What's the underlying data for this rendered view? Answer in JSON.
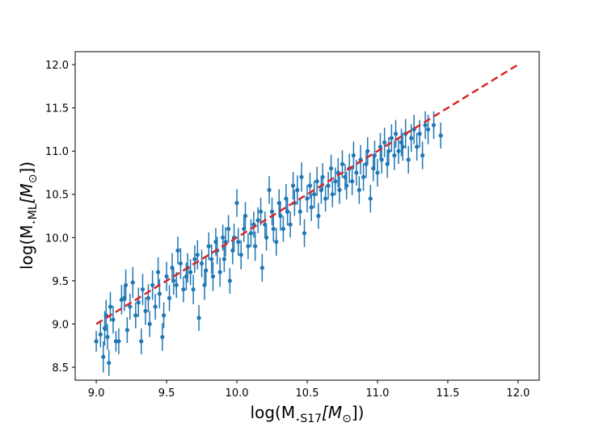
{
  "chart_data": {
    "type": "scatter",
    "title": "",
    "xlabel": {
      "prefix": "log(M",
      "star": "⋆",
      "sub": "S17",
      "unit": "[M",
      "odot": "⊙",
      "suffix": "])"
    },
    "ylabel": {
      "prefix": "log(M",
      "star": "⋆",
      "sub": "ML",
      "unit": "[M",
      "odot": "⊙",
      "suffix": "])"
    },
    "xlim": [
      8.85,
      12.15
    ],
    "ylim": [
      8.35,
      12.15
    ],
    "xticks": [
      9.0,
      9.5,
      10.0,
      10.5,
      11.0,
      11.5,
      12.0
    ],
    "xtick_labels": [
      "9.0",
      "9.5",
      "10.0",
      "10.5",
      "11.0",
      "11.5",
      "12.0"
    ],
    "yticks": [
      8.5,
      9.0,
      9.5,
      10.0,
      10.5,
      11.0,
      11.5,
      12.0
    ],
    "ytick_labels": [
      "8.5",
      "9.0",
      "9.5",
      "10.0",
      "10.5",
      "11.0",
      "11.5",
      "12.0"
    ],
    "grid": false,
    "legend": "none",
    "series": [
      {
        "kind": "errorbar-points",
        "color": "#1f77b4",
        "points": [
          [
            9.0,
            8.8,
            0.12
          ],
          [
            9.03,
            8.88,
            0.15
          ],
          [
            9.05,
            8.62,
            0.18
          ],
          [
            9.06,
            8.95,
            0.2
          ],
          [
            9.07,
            9.1,
            0.18
          ],
          [
            9.08,
            8.85,
            0.15
          ],
          [
            9.09,
            8.55,
            0.15
          ],
          [
            9.1,
            9.2,
            0.17
          ],
          [
            9.12,
            9.05,
            0.16
          ],
          [
            9.14,
            8.8,
            0.12
          ],
          [
            9.16,
            8.8,
            0.15
          ],
          [
            9.18,
            9.28,
            0.17
          ],
          [
            9.2,
            9.3,
            0.15
          ],
          [
            9.21,
            9.45,
            0.18
          ],
          [
            9.22,
            8.93,
            0.15
          ],
          [
            9.24,
            9.2,
            0.15
          ],
          [
            9.26,
            9.48,
            0.18
          ],
          [
            9.28,
            9.1,
            0.15
          ],
          [
            9.3,
            9.25,
            0.17
          ],
          [
            9.32,
            8.8,
            0.15
          ],
          [
            9.33,
            9.4,
            0.18
          ],
          [
            9.35,
            9.15,
            0.16
          ],
          [
            9.37,
            9.3,
            0.16
          ],
          [
            9.38,
            9.0,
            0.15
          ],
          [
            9.4,
            9.45,
            0.17
          ],
          [
            9.42,
            9.2,
            0.15
          ],
          [
            9.44,
            9.6,
            0.17
          ],
          [
            9.45,
            9.35,
            0.17
          ],
          [
            9.47,
            8.85,
            0.16
          ],
          [
            9.48,
            9.1,
            0.15
          ],
          [
            9.5,
            9.55,
            0.17
          ],
          [
            9.52,
            9.3,
            0.15
          ],
          [
            9.54,
            9.65,
            0.17
          ],
          [
            9.55,
            9.5,
            0.16
          ],
          [
            9.57,
            9.45,
            0.15
          ],
          [
            9.58,
            9.85,
            0.16
          ],
          [
            9.6,
            9.7,
            0.18
          ],
          [
            9.62,
            9.4,
            0.15
          ],
          [
            9.64,
            9.55,
            0.16
          ],
          [
            9.65,
            9.65,
            0.17
          ],
          [
            9.67,
            9.6,
            0.15
          ],
          [
            9.69,
            9.4,
            0.17
          ],
          [
            9.7,
            9.75,
            0.16
          ],
          [
            9.72,
            9.8,
            0.17
          ],
          [
            9.73,
            9.07,
            0.15
          ],
          [
            9.75,
            9.7,
            0.16
          ],
          [
            9.77,
            9.45,
            0.17
          ],
          [
            9.78,
            9.62,
            0.16
          ],
          [
            9.8,
            9.9,
            0.16
          ],
          [
            9.82,
            9.75,
            0.17
          ],
          [
            9.83,
            9.55,
            0.17
          ],
          [
            9.85,
            9.95,
            0.16
          ],
          [
            9.86,
            9.85,
            0.16
          ],
          [
            9.88,
            9.6,
            0.17
          ],
          [
            9.9,
            10.0,
            0.15
          ],
          [
            9.91,
            9.75,
            0.15
          ],
          [
            9.92,
            9.95,
            0.17
          ],
          [
            9.94,
            10.1,
            0.16
          ],
          [
            9.95,
            9.5,
            0.15
          ],
          [
            9.97,
            9.85,
            0.16
          ],
          [
            9.98,
            10.0,
            0.16
          ],
          [
            10.0,
            10.4,
            0.16
          ],
          [
            10.01,
            9.95,
            0.16
          ],
          [
            10.03,
            9.8,
            0.17
          ],
          [
            10.05,
            10.1,
            0.15
          ],
          [
            10.06,
            10.25,
            0.16
          ],
          [
            10.08,
            9.9,
            0.15
          ],
          [
            10.1,
            10.05,
            0.16
          ],
          [
            10.12,
            10.15,
            0.15
          ],
          [
            10.13,
            9.9,
            0.17
          ],
          [
            10.15,
            10.2,
            0.15
          ],
          [
            10.17,
            10.3,
            0.16
          ],
          [
            10.18,
            9.65,
            0.16
          ],
          [
            10.2,
            10.15,
            0.15
          ],
          [
            10.21,
            10.0,
            0.15
          ],
          [
            10.23,
            10.55,
            0.16
          ],
          [
            10.25,
            10.3,
            0.16
          ],
          [
            10.26,
            10.1,
            0.15
          ],
          [
            10.28,
            9.95,
            0.16
          ],
          [
            10.3,
            10.4,
            0.16
          ],
          [
            10.31,
            10.25,
            0.17
          ],
          [
            10.33,
            10.1,
            0.15
          ],
          [
            10.35,
            10.45,
            0.17
          ],
          [
            10.36,
            10.3,
            0.16
          ],
          [
            10.38,
            10.15,
            0.15
          ],
          [
            10.4,
            10.6,
            0.16
          ],
          [
            10.41,
            10.4,
            0.15
          ],
          [
            10.43,
            10.55,
            0.17
          ],
          [
            10.45,
            10.3,
            0.16
          ],
          [
            10.46,
            10.7,
            0.17
          ],
          [
            10.48,
            10.05,
            0.16
          ],
          [
            10.5,
            10.45,
            0.16
          ],
          [
            10.52,
            10.6,
            0.15
          ],
          [
            10.53,
            10.35,
            0.16
          ],
          [
            10.55,
            10.5,
            0.16
          ],
          [
            10.57,
            10.65,
            0.17
          ],
          [
            10.58,
            10.25,
            0.15
          ],
          [
            10.6,
            10.55,
            0.16
          ],
          [
            10.61,
            10.7,
            0.16
          ],
          [
            10.63,
            10.45,
            0.15
          ],
          [
            10.65,
            10.6,
            0.16
          ],
          [
            10.67,
            10.8,
            0.16
          ],
          [
            10.68,
            10.5,
            0.15
          ],
          [
            10.7,
            10.65,
            0.16
          ],
          [
            10.72,
            10.75,
            0.17
          ],
          [
            10.73,
            10.55,
            0.16
          ],
          [
            10.75,
            10.85,
            0.16
          ],
          [
            10.77,
            10.7,
            0.15
          ],
          [
            10.78,
            10.6,
            0.16
          ],
          [
            10.8,
            10.8,
            0.17
          ],
          [
            10.82,
            10.65,
            0.16
          ],
          [
            10.83,
            10.95,
            0.16
          ],
          [
            10.85,
            10.75,
            0.15
          ],
          [
            10.87,
            10.55,
            0.16
          ],
          [
            10.88,
            10.9,
            0.17
          ],
          [
            10.9,
            10.7,
            0.16
          ],
          [
            10.92,
            10.85,
            0.16
          ],
          [
            10.93,
            11.0,
            0.16
          ],
          [
            10.95,
            10.45,
            0.16
          ],
          [
            10.97,
            10.8,
            0.15
          ],
          [
            10.98,
            10.95,
            0.17
          ],
          [
            11.0,
            10.75,
            0.16
          ],
          [
            11.02,
            11.05,
            0.16
          ],
          [
            11.03,
            10.9,
            0.16
          ],
          [
            11.05,
            11.1,
            0.17
          ],
          [
            11.07,
            10.85,
            0.16
          ],
          [
            11.08,
            11.0,
            0.16
          ],
          [
            11.1,
            11.15,
            0.16
          ],
          [
            11.12,
            10.95,
            0.17
          ],
          [
            11.13,
            11.2,
            0.16
          ],
          [
            11.15,
            11.0,
            0.15
          ],
          [
            11.17,
            11.1,
            0.16
          ],
          [
            11.18,
            11.05,
            0.16
          ],
          [
            11.2,
            11.2,
            0.17
          ],
          [
            11.22,
            10.9,
            0.16
          ],
          [
            11.24,
            11.15,
            0.16
          ],
          [
            11.26,
            11.25,
            0.17
          ],
          [
            11.28,
            11.05,
            0.16
          ],
          [
            11.3,
            11.2,
            0.16
          ],
          [
            11.32,
            10.95,
            0.16
          ],
          [
            11.34,
            11.3,
            0.16
          ],
          [
            11.36,
            11.25,
            0.17
          ],
          [
            11.4,
            11.3,
            0.16
          ],
          [
            11.45,
            11.18,
            0.15
          ]
        ]
      },
      {
        "kind": "dashed-line",
        "color": "#d62728",
        "x": [
          9.0,
          12.0
        ],
        "y": [
          9.0,
          12.0
        ]
      }
    ]
  }
}
